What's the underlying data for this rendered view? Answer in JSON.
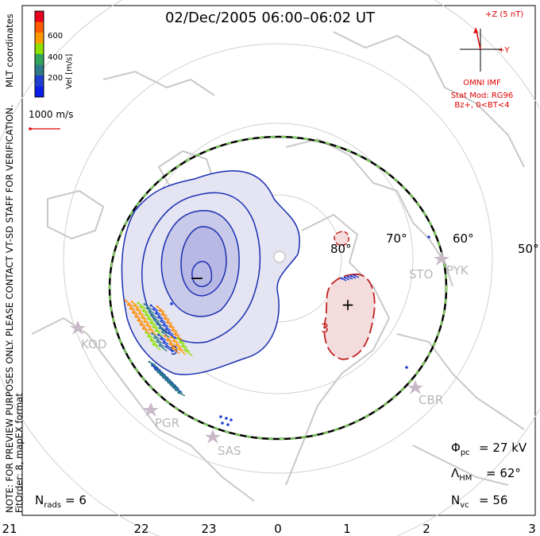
{
  "title": "02/Dec/2005 06:00–06:02 UT",
  "imf": {
    "z_label": "+Z (5 nT)",
    "y_label": "+Y",
    "source": "OMNI IMF",
    "model_line1": "Stat Mod: RG96",
    "model_line2": "Bz+, 0<BT<4"
  },
  "color_scale": {
    "axis_label": "Vel [m/s]",
    "ticks": [
      "600",
      "400",
      "200"
    ],
    "colors": [
      "#e8001c",
      "#ff5a00",
      "#ff9a00",
      "#8fe000",
      "#2fa45a",
      "#2f7a88",
      "#1e3fd0",
      "#0a1ee8"
    ]
  },
  "coord_label": "MLT coordinates",
  "velocity_ref": "1000 m/s",
  "side_note_line1": "NOTE: FOR PREVIEW PURPOSES ONLY. PLEASE CONTACT VT-SD STAFF FOR VERIFICATION.",
  "side_note_line2": "FitOrder: 8, mapEX format",
  "latitude_labels": [
    "80°",
    "70°",
    "60°",
    "50°"
  ],
  "stations": [
    "KOD",
    "PGR",
    "SAS",
    "STO",
    "PYK",
    "CBR"
  ],
  "cell_markers": {
    "negative": "−",
    "positive": "+",
    "neg_value": "9",
    "pos_value": "3"
  },
  "mlt_ticks": [
    "21",
    "22",
    "23",
    "0",
    "1",
    "2",
    "3"
  ],
  "stats": {
    "phi_pc": "27 kV",
    "lambda_hm": "62°",
    "n_vc": "56",
    "n_rads": "6"
  }
}
